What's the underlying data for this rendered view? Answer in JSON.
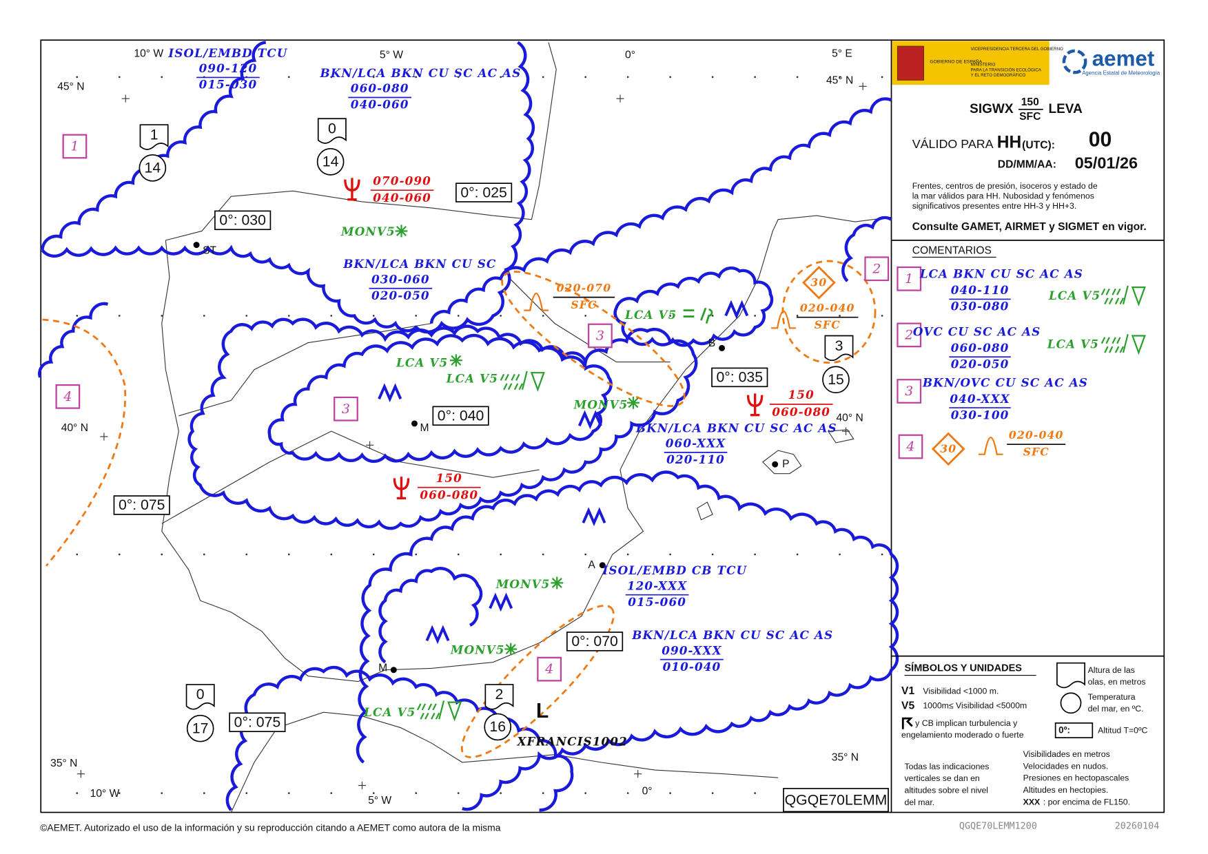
{
  "lat_lon_labels": [
    "10° W",
    "5° W",
    "0°",
    "5° E",
    "45° N",
    "45° N",
    "40° N",
    "40° N",
    "35° N",
    "35° N",
    "10° W",
    "5° W",
    "0°"
  ],
  "city_labels": [
    "ST",
    "M",
    "B",
    "P",
    "A",
    "M"
  ],
  "freezing_levels": [
    "0°: 030",
    "0°: 025",
    "0°: 040",
    "0°: 035",
    "0°: 075",
    "0°: 070",
    "0°: 075"
  ],
  "sea_states": [
    {
      "wave_height": "1",
      "sea_temp": "14"
    },
    {
      "wave_height": "0",
      "sea_temp": "14"
    },
    {
      "wave_height": "3",
      "sea_temp": "15"
    },
    {
      "wave_height": "0",
      "sea_temp": "17"
    },
    {
      "wave_height": "2",
      "sea_temp": "16"
    }
  ],
  "area_labels": [
    "1",
    "2",
    "3",
    "3",
    "4",
    "4"
  ],
  "cloud_areas": [
    {
      "cloud": "ISOL/EMBD TCU",
      "upper": "090-120",
      "lower": "015-030"
    },
    {
      "cloud": "BKN/LCA BKN CU SC AC AS",
      "upper": "060-080",
      "lower": "040-060"
    },
    {
      "cloud": "BKN/LCA BKN CU SC",
      "upper": "030-060",
      "lower": "020-050"
    },
    {
      "cloud": "BKN/LCA BKN CU SC AC AS",
      "upper": "060-XXX",
      "lower": "020-110"
    },
    {
      "cloud": "ISOL/EMBD CB TCU",
      "upper": "120-XXX",
      "lower": "015-060"
    },
    {
      "cloud": "BKN/LCA BKN CU SC AC AS",
      "upper": "090-XXX",
      "lower": "010-040"
    }
  ],
  "turbulence": [
    {
      "upper": "070-090",
      "lower": "040-060"
    },
    {
      "upper": "150",
      "lower": "060-080"
    },
    {
      "upper": "150",
      "lower": "060-080"
    }
  ],
  "mountain_waves": [
    {
      "upper": "020-070",
      "lower": "SFC"
    },
    {
      "upper": "020-040",
      "lower": "SFC",
      "intensity": "30"
    }
  ],
  "visibility_notes": [
    "MONV5",
    "MONV5",
    "MONV5",
    "MONV5",
    "LCA V5",
    "LCA V5",
    "LCA V5",
    "LCA V5"
  ],
  "low": {
    "symbol": "L",
    "name": "XFRANCIS1002"
  },
  "bulletin_id": "QGQE70LEMM",
  "panel": {
    "logo": {
      "gov": "GOBIERNO DE ESPAÑA",
      "vp": "VICEPRESIDENCIA TERCERA DEL GOBIERNO",
      "ministry_1": "MINISTERIO",
      "ministry_2": "PARA LA TRANSICIÓN ECOLÓGICA",
      "ministry_3": "Y EL RETO DEMOGRÁFICO",
      "aemet": "aemet",
      "agency": "Agencia Estatal de Meteorología"
    },
    "product": "SIGWX",
    "top": "150",
    "bottom": "SFC",
    "region": "LEVA",
    "valid_label": "VÁLIDO PARA",
    "hh": "HH",
    "utc": "(UTC):",
    "hour": "00",
    "date_label": "DD/MM/AA:",
    "date": "05/01/26",
    "note_lines": [
      "Frentes, centros de presión, isoceros y estado de",
      "la mar válidos para HH. Nubosidad y fenómenos",
      "significativos presentes entre HH-3 y HH+3."
    ],
    "consult": "Consulte GAMET, AIRMET y SIGMET en vigor.",
    "comments_title": "COMENTARIOS",
    "comments": [
      {
        "area": "1",
        "cloud": "LCA BKN CU SC AC AS",
        "upper": "040-110",
        "lower": "030-080",
        "vis": "LCA V5"
      },
      {
        "area": "2",
        "cloud": "OVC CU SC AC AS",
        "upper": "060-080",
        "lower": "020-050",
        "vis": "LCA V5"
      },
      {
        "area": "3",
        "cloud": "BKN/OVC CU SC AC AS",
        "upper": "040-XXX",
        "lower": "030-100"
      },
      {
        "area": "4",
        "intensity": "30",
        "upper": "020-040",
        "lower": "SFC"
      }
    ],
    "symbols_title": "SÍMBOLOS Y UNIDADES",
    "v1": "V1",
    "v1_text": "Visibilidad <1000 m.",
    "v5": "V5",
    "v5_text": "1000m≤ Visibilidad <5000m",
    "cb_lines": [
      "y CB implican turbulencia y",
      "engelamiento moderado o fuerte"
    ],
    "wave_lines": [
      "Altura de las",
      "olas, en metros"
    ],
    "temp_lines": [
      "Temperatura",
      "del mar, en ºC."
    ],
    "zero_box": "0º:",
    "zero_text": "Altitud T=0ºC",
    "vertical_lines": [
      "Todas las indicaciones",
      "verticales se dan en",
      "altitudes sobre el nivel",
      "del mar."
    ],
    "unit_lines": [
      "Visibilidades en metros",
      "Velocidades en nudos.",
      "Presiones en hectopascales",
      "Altitudes en hectopies."
    ],
    "xxx": "XXX",
    "xxx_text": ": por encima de FL150."
  },
  "footer": {
    "copyright": "©AEMET. Autorizado el uso de la información y su reproducción citando a AEMET como autora de la misma",
    "code": "QGQE70LEMM1200",
    "date": "20260104"
  }
}
